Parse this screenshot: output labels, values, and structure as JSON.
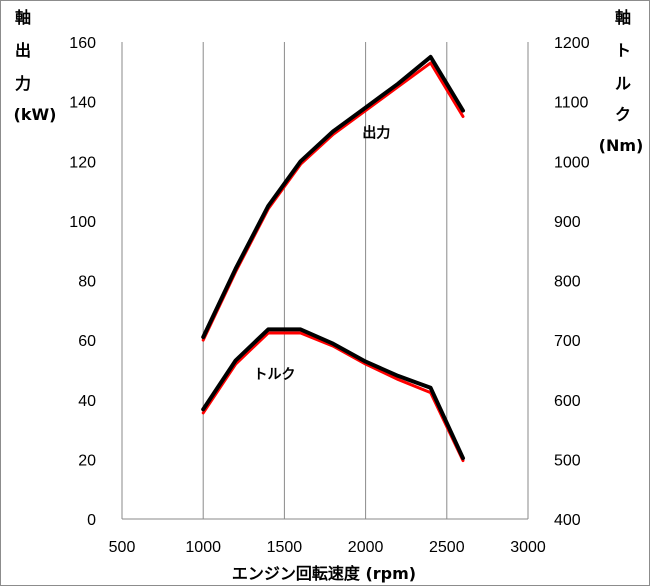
{
  "chart_data": {
    "type": "line",
    "xlabel": "エンジン回転速度 (rpm)",
    "ylabel_left_lines": [
      "軸",
      "出",
      "力",
      "(kW)"
    ],
    "ylabel_right_lines": [
      "軸",
      "ト",
      "ル",
      "ク",
      "(Nm)"
    ],
    "xlim": [
      500,
      3000
    ],
    "ylim_left": [
      0,
      160
    ],
    "ylim_right": [
      400,
      1200
    ],
    "x_ticks": [
      500,
      1000,
      1500,
      2000,
      2500,
      3000
    ],
    "y_left_ticks": [
      0,
      20,
      40,
      60,
      80,
      100,
      120,
      140,
      160
    ],
    "y_right_ticks": [
      400,
      500,
      600,
      700,
      800,
      900,
      1000,
      1100,
      1200
    ],
    "grid": "vertical",
    "annotations": [
      {
        "text": "出力",
        "x": 1980,
        "y": 128,
        "axis": "left"
      },
      {
        "text": "トルク",
        "x": 1310,
        "y": 47,
        "axis": "left"
      }
    ],
    "series": [
      {
        "group": "output",
        "axis": "left",
        "color": "#000000",
        "x": [
          1000,
          1200,
          1400,
          1600,
          1800,
          2000,
          2200,
          2400,
          2600
        ],
        "y": [
          61,
          84,
          105,
          120,
          130,
          138,
          146,
          155,
          137
        ]
      },
      {
        "group": "output",
        "axis": "left",
        "color": "#ff0000",
        "x": [
          1000,
          1200,
          1400,
          1600,
          1800,
          2000,
          2200,
          2400,
          2600
        ],
        "y": [
          60,
          83,
          104,
          119,
          129,
          137,
          145,
          153,
          135
        ]
      },
      {
        "group": "torque",
        "axis": "right",
        "color": "#000000",
        "x": [
          1000,
          1200,
          1400,
          1600,
          1800,
          2000,
          2200,
          2400,
          2600
        ],
        "y": [
          584,
          666,
          718,
          718,
          694,
          664,
          640,
          620,
          502
        ]
      },
      {
        "group": "torque",
        "axis": "right",
        "color": "#ff0000",
        "x": [
          1000,
          1200,
          1400,
          1600,
          1800,
          2000,
          2200,
          2400,
          2600
        ],
        "y": [
          578,
          660,
          712,
          712,
          690,
          660,
          634,
          612,
          498
        ]
      }
    ]
  }
}
